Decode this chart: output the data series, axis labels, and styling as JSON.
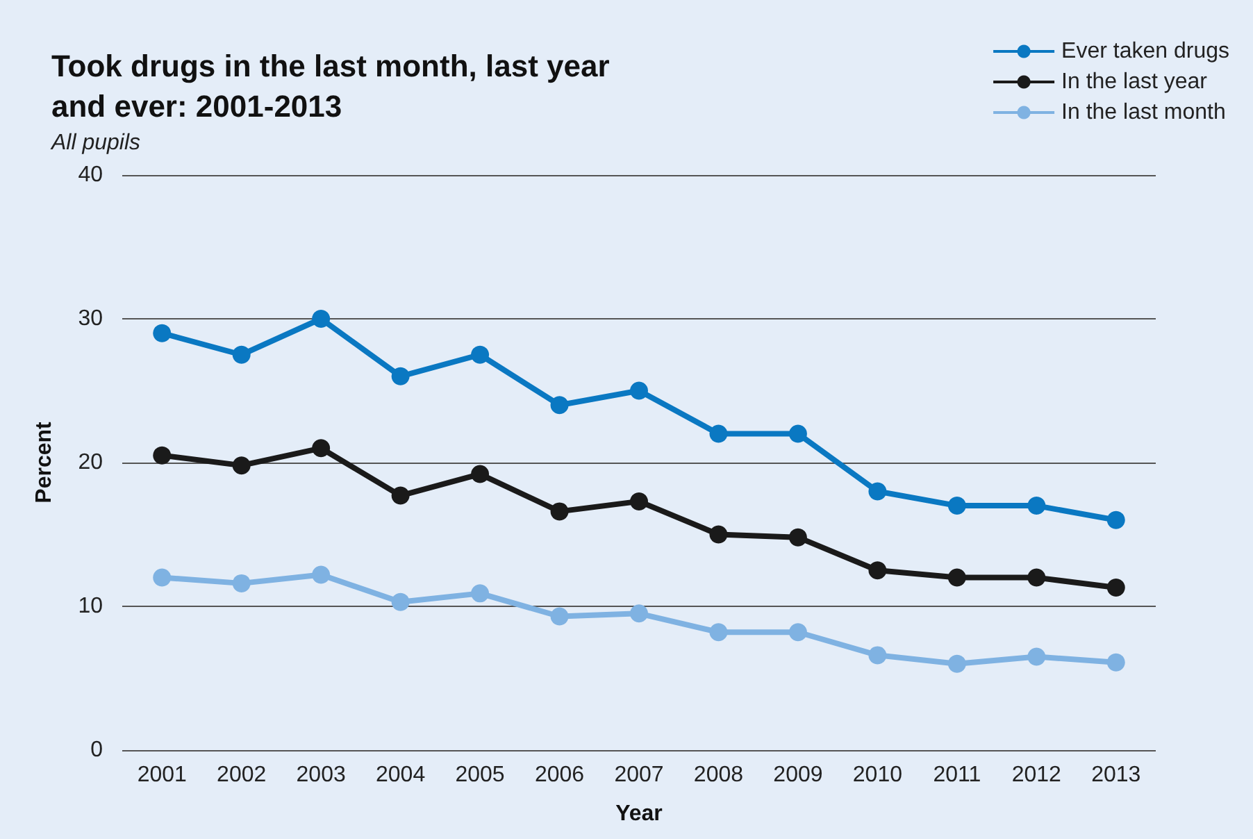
{
  "chart_data": {
    "type": "line",
    "title": "Took drugs in the last month, last year\nand ever: 2001-2013",
    "subtitle": "All pupils",
    "xlabel": "Year",
    "ylabel": "Percent",
    "categories": [
      "2001",
      "2002",
      "2003",
      "2004",
      "2005",
      "2006",
      "2007",
      "2008",
      "2009",
      "2010",
      "2011",
      "2012",
      "2013"
    ],
    "series": [
      {
        "name": "Ever taken drugs",
        "color": "#0a78c2",
        "values": [
          29,
          27.5,
          30,
          26,
          27.5,
          24,
          25,
          22,
          22,
          18,
          17,
          17,
          16
        ]
      },
      {
        "name": "In the last year",
        "color": "#1a1a1a",
        "values": [
          20.5,
          19.8,
          21,
          17.7,
          19.2,
          16.6,
          17.3,
          15,
          14.8,
          12.5,
          12,
          12,
          11.3
        ]
      },
      {
        "name": "In the last month",
        "color": "#7fb2e2",
        "values": [
          12,
          11.6,
          12.2,
          10.3,
          10.9,
          9.3,
          9.5,
          8.2,
          8.2,
          6.6,
          6,
          6.5,
          6.1
        ]
      }
    ],
    "ylim": [
      0,
      40
    ],
    "yticks": [
      0,
      10,
      20,
      30,
      40
    ],
    "grid": "y",
    "legend": "top right",
    "marker": "circle",
    "line_style": "solid"
  }
}
